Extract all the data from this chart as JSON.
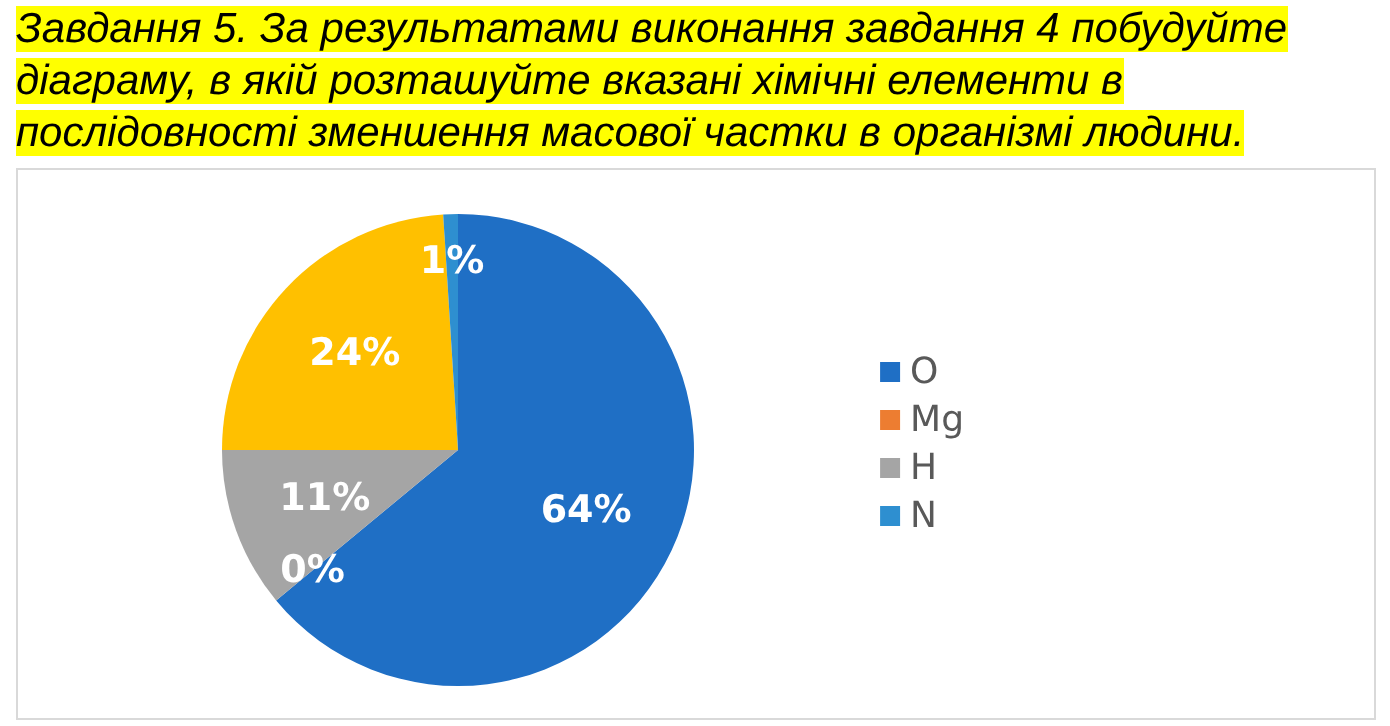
{
  "chart_data": {
    "type": "pie",
    "title": "Завдання 5. За результатами виконання завдання 4 побудуйте діаграму, в якій розташуйте вказані хімічні елементи в послідовності зменшення масової частки в організмі людини.",
    "categories": [
      "O",
      "Mg",
      "H",
      null,
      "N"
    ],
    "values": [
      64,
      0,
      11,
      24,
      1
    ],
    "colors": [
      "#1f6fc5",
      "#ed7d31",
      "#a5a5a5",
      "#ffc000",
      "#2e8fd0"
    ],
    "value_labels": [
      "64%",
      "0%",
      "11%",
      "24%",
      "1%"
    ],
    "legend": "right"
  }
}
